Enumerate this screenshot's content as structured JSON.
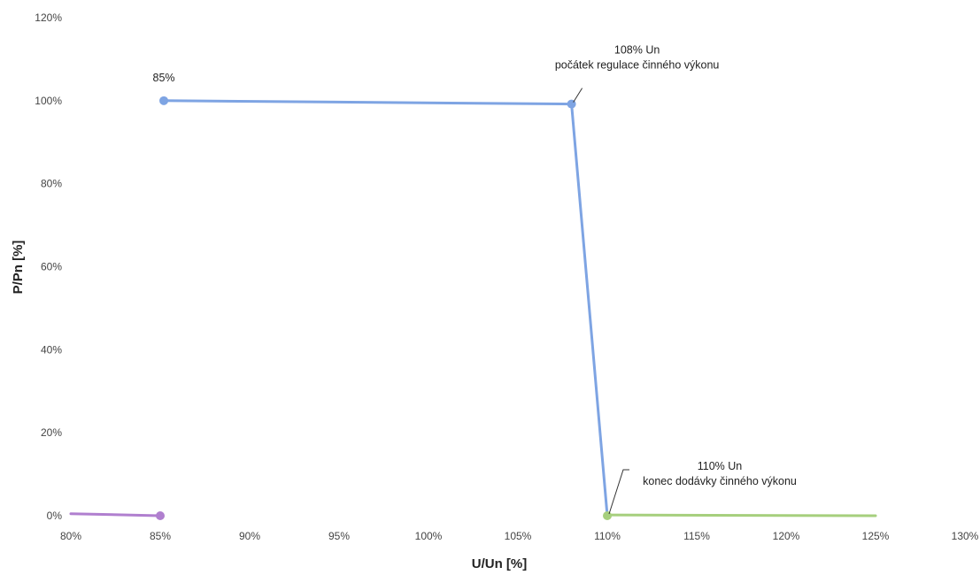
{
  "chart_data": {
    "type": "line",
    "xlabel": "U/Un [%]",
    "ylabel": "P/Pn [%]",
    "xlim": [
      80,
      130
    ],
    "ylim": [
      0,
      120
    ],
    "x_ticks": [
      "80%",
      "85%",
      "90%",
      "95%",
      "100%",
      "105%",
      "110%",
      "115%",
      "120%",
      "125%",
      "130%"
    ],
    "y_ticks": [
      "0%",
      "20%",
      "40%",
      "60%",
      "80%",
      "100%",
      "120%"
    ],
    "grid": false,
    "series": [
      {
        "color": "#b07fcf",
        "points": [
          [
            80,
            0.5
          ],
          [
            85,
            0
          ]
        ]
      },
      {
        "color": "#7ea4e3",
        "points": [
          [
            85.2,
            100
          ],
          [
            108,
            99.2
          ],
          [
            110,
            0
          ]
        ]
      },
      {
        "color": "#a6cf7d",
        "points": [
          [
            110,
            0.2
          ],
          [
            125,
            0
          ]
        ]
      }
    ],
    "markers": [
      {
        "x": 85,
        "y": 0,
        "color": "#b07fcf"
      },
      {
        "x": 85.2,
        "y": 100,
        "color": "#7ea4e3"
      },
      {
        "x": 108,
        "y": 99.2,
        "color": "#7ea4e3"
      },
      {
        "x": 110,
        "y": 0,
        "color": "#a6cf7d"
      }
    ],
    "annotations": [
      {
        "lines": [
          "85%"
        ],
        "x": 85.2,
        "y": 100
      },
      {
        "lines": [
          "108% Un",
          "počátek regulace činného výkonu"
        ],
        "x": 108,
        "y": 99.2
      },
      {
        "lines": [
          "110% Un",
          "konec dodávky činného výkonu"
        ],
        "x": 110,
        "y": 0
      }
    ]
  }
}
